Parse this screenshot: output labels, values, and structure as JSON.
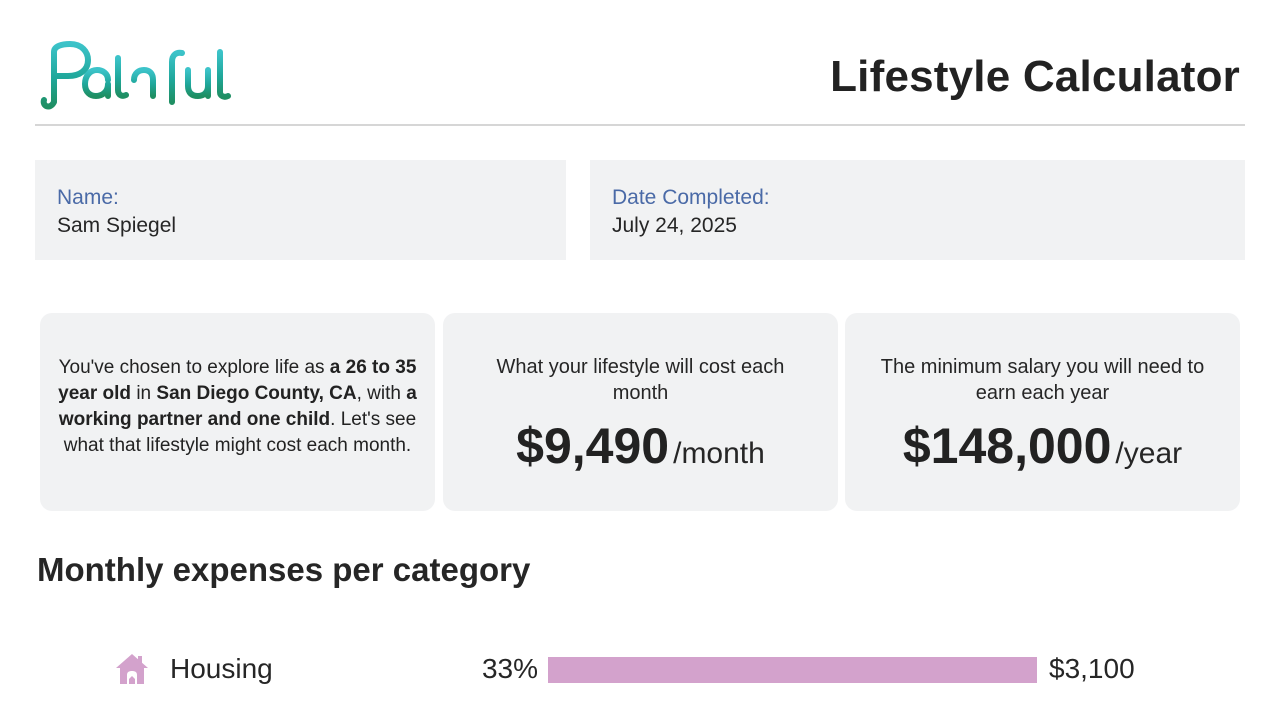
{
  "brand": {
    "name": "Pathful"
  },
  "header": {
    "title": "Lifestyle Calculator"
  },
  "profile": {
    "name_label": "Name:",
    "name_value": "Sam Spiegel",
    "date_label": "Date Completed:",
    "date_value": "July 24, 2025"
  },
  "summary": {
    "parts": [
      {
        "text": "You've chosen to explore life as ",
        "bold": false
      },
      {
        "text": "a 26 to 35 year old",
        "bold": true
      },
      {
        "text": " in ",
        "bold": false
      },
      {
        "text": "San Diego County, CA",
        "bold": true
      },
      {
        "text": ", with ",
        "bold": false
      },
      {
        "text": "a working partner and one child",
        "bold": true
      },
      {
        "text": ". Let's see what that lifestyle might cost each month.",
        "bold": false
      }
    ]
  },
  "monthly_cost": {
    "caption": "What your lifestyle will cost each month",
    "amount": "$9,490",
    "unit": "/month"
  },
  "salary": {
    "caption": "The minimum salary you will need to earn each year",
    "amount": "$148,000",
    "unit": "/year"
  },
  "expenses": {
    "title": "Monthly expenses per category",
    "bar_color": "#d3a2cc",
    "items": [
      {
        "icon": "house-icon",
        "label": "Housing",
        "percent_label": "33%",
        "amount": "$3,100",
        "fill_fraction": 1.0
      }
    ]
  }
}
